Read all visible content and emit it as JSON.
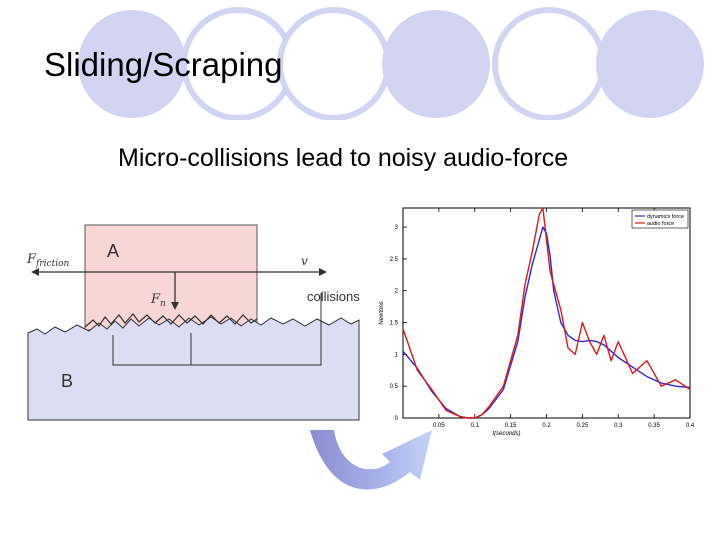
{
  "slide": {
    "title": "Sliding/Scraping",
    "subtitle": "Micro-collisions lead to noisy audio-force",
    "accent_color": "#cfd0f0"
  },
  "diagram": {
    "block_a_label": "A",
    "block_b_label": "B",
    "friction_label_main": "F",
    "friction_label_sub": "friction",
    "velocity_label": "v",
    "normal_force_main": "F",
    "normal_force_sub": "n",
    "collisions_label": "collisions",
    "block_a_color": "#f9d6d6",
    "block_b_color": "#dcdcf5"
  },
  "chart_data": {
    "type": "line",
    "xlabel": "t(seconds)",
    "ylabel": "Newtons",
    "xlim": [
      0.0,
      0.4
    ],
    "ylim": [
      0,
      3.3
    ],
    "x_ticks": [
      "0.05",
      "0.1",
      "0.15",
      "0.2",
      "0.25",
      "0.3",
      "0.35",
      "0.4"
    ],
    "y_ticks": [
      "0",
      "0.5",
      "1",
      "1.5",
      "2",
      "2.5",
      "3"
    ],
    "legend_position": "top-right",
    "series": [
      {
        "name": "dynamics force",
        "color": "#2b2bd6",
        "x": [
          0.0,
          0.02,
          0.04,
          0.06,
          0.08,
          0.09,
          0.1,
          0.11,
          0.12,
          0.14,
          0.16,
          0.17,
          0.18,
          0.19,
          0.195,
          0.2,
          0.205,
          0.21,
          0.22,
          0.23,
          0.24,
          0.25,
          0.26,
          0.27,
          0.28,
          0.29,
          0.3,
          0.32,
          0.34,
          0.36,
          0.38,
          0.4
        ],
        "y": [
          1.05,
          0.78,
          0.42,
          0.15,
          0.02,
          0.0,
          0.0,
          0.05,
          0.15,
          0.45,
          1.2,
          1.9,
          2.4,
          2.8,
          3.0,
          2.9,
          2.55,
          2.0,
          1.5,
          1.3,
          1.22,
          1.2,
          1.22,
          1.2,
          1.15,
          1.05,
          0.95,
          0.8,
          0.65,
          0.55,
          0.5,
          0.48
        ]
      },
      {
        "name": "audio force",
        "color": "#e01818",
        "x": [
          0.0,
          0.02,
          0.04,
          0.06,
          0.08,
          0.09,
          0.1,
          0.11,
          0.12,
          0.14,
          0.16,
          0.17,
          0.18,
          0.19,
          0.195,
          0.2,
          0.205,
          0.21,
          0.22,
          0.23,
          0.24,
          0.25,
          0.26,
          0.27,
          0.28,
          0.29,
          0.3,
          0.32,
          0.34,
          0.36,
          0.38,
          0.4
        ],
        "y": [
          1.4,
          0.75,
          0.45,
          0.12,
          0.02,
          0.0,
          0.0,
          0.05,
          0.18,
          0.5,
          1.3,
          2.1,
          2.6,
          3.2,
          3.3,
          2.8,
          2.3,
          2.1,
          1.7,
          1.1,
          1.0,
          1.5,
          1.2,
          1.0,
          1.3,
          0.9,
          1.2,
          0.7,
          0.9,
          0.5,
          0.6,
          0.45
        ]
      }
    ]
  }
}
